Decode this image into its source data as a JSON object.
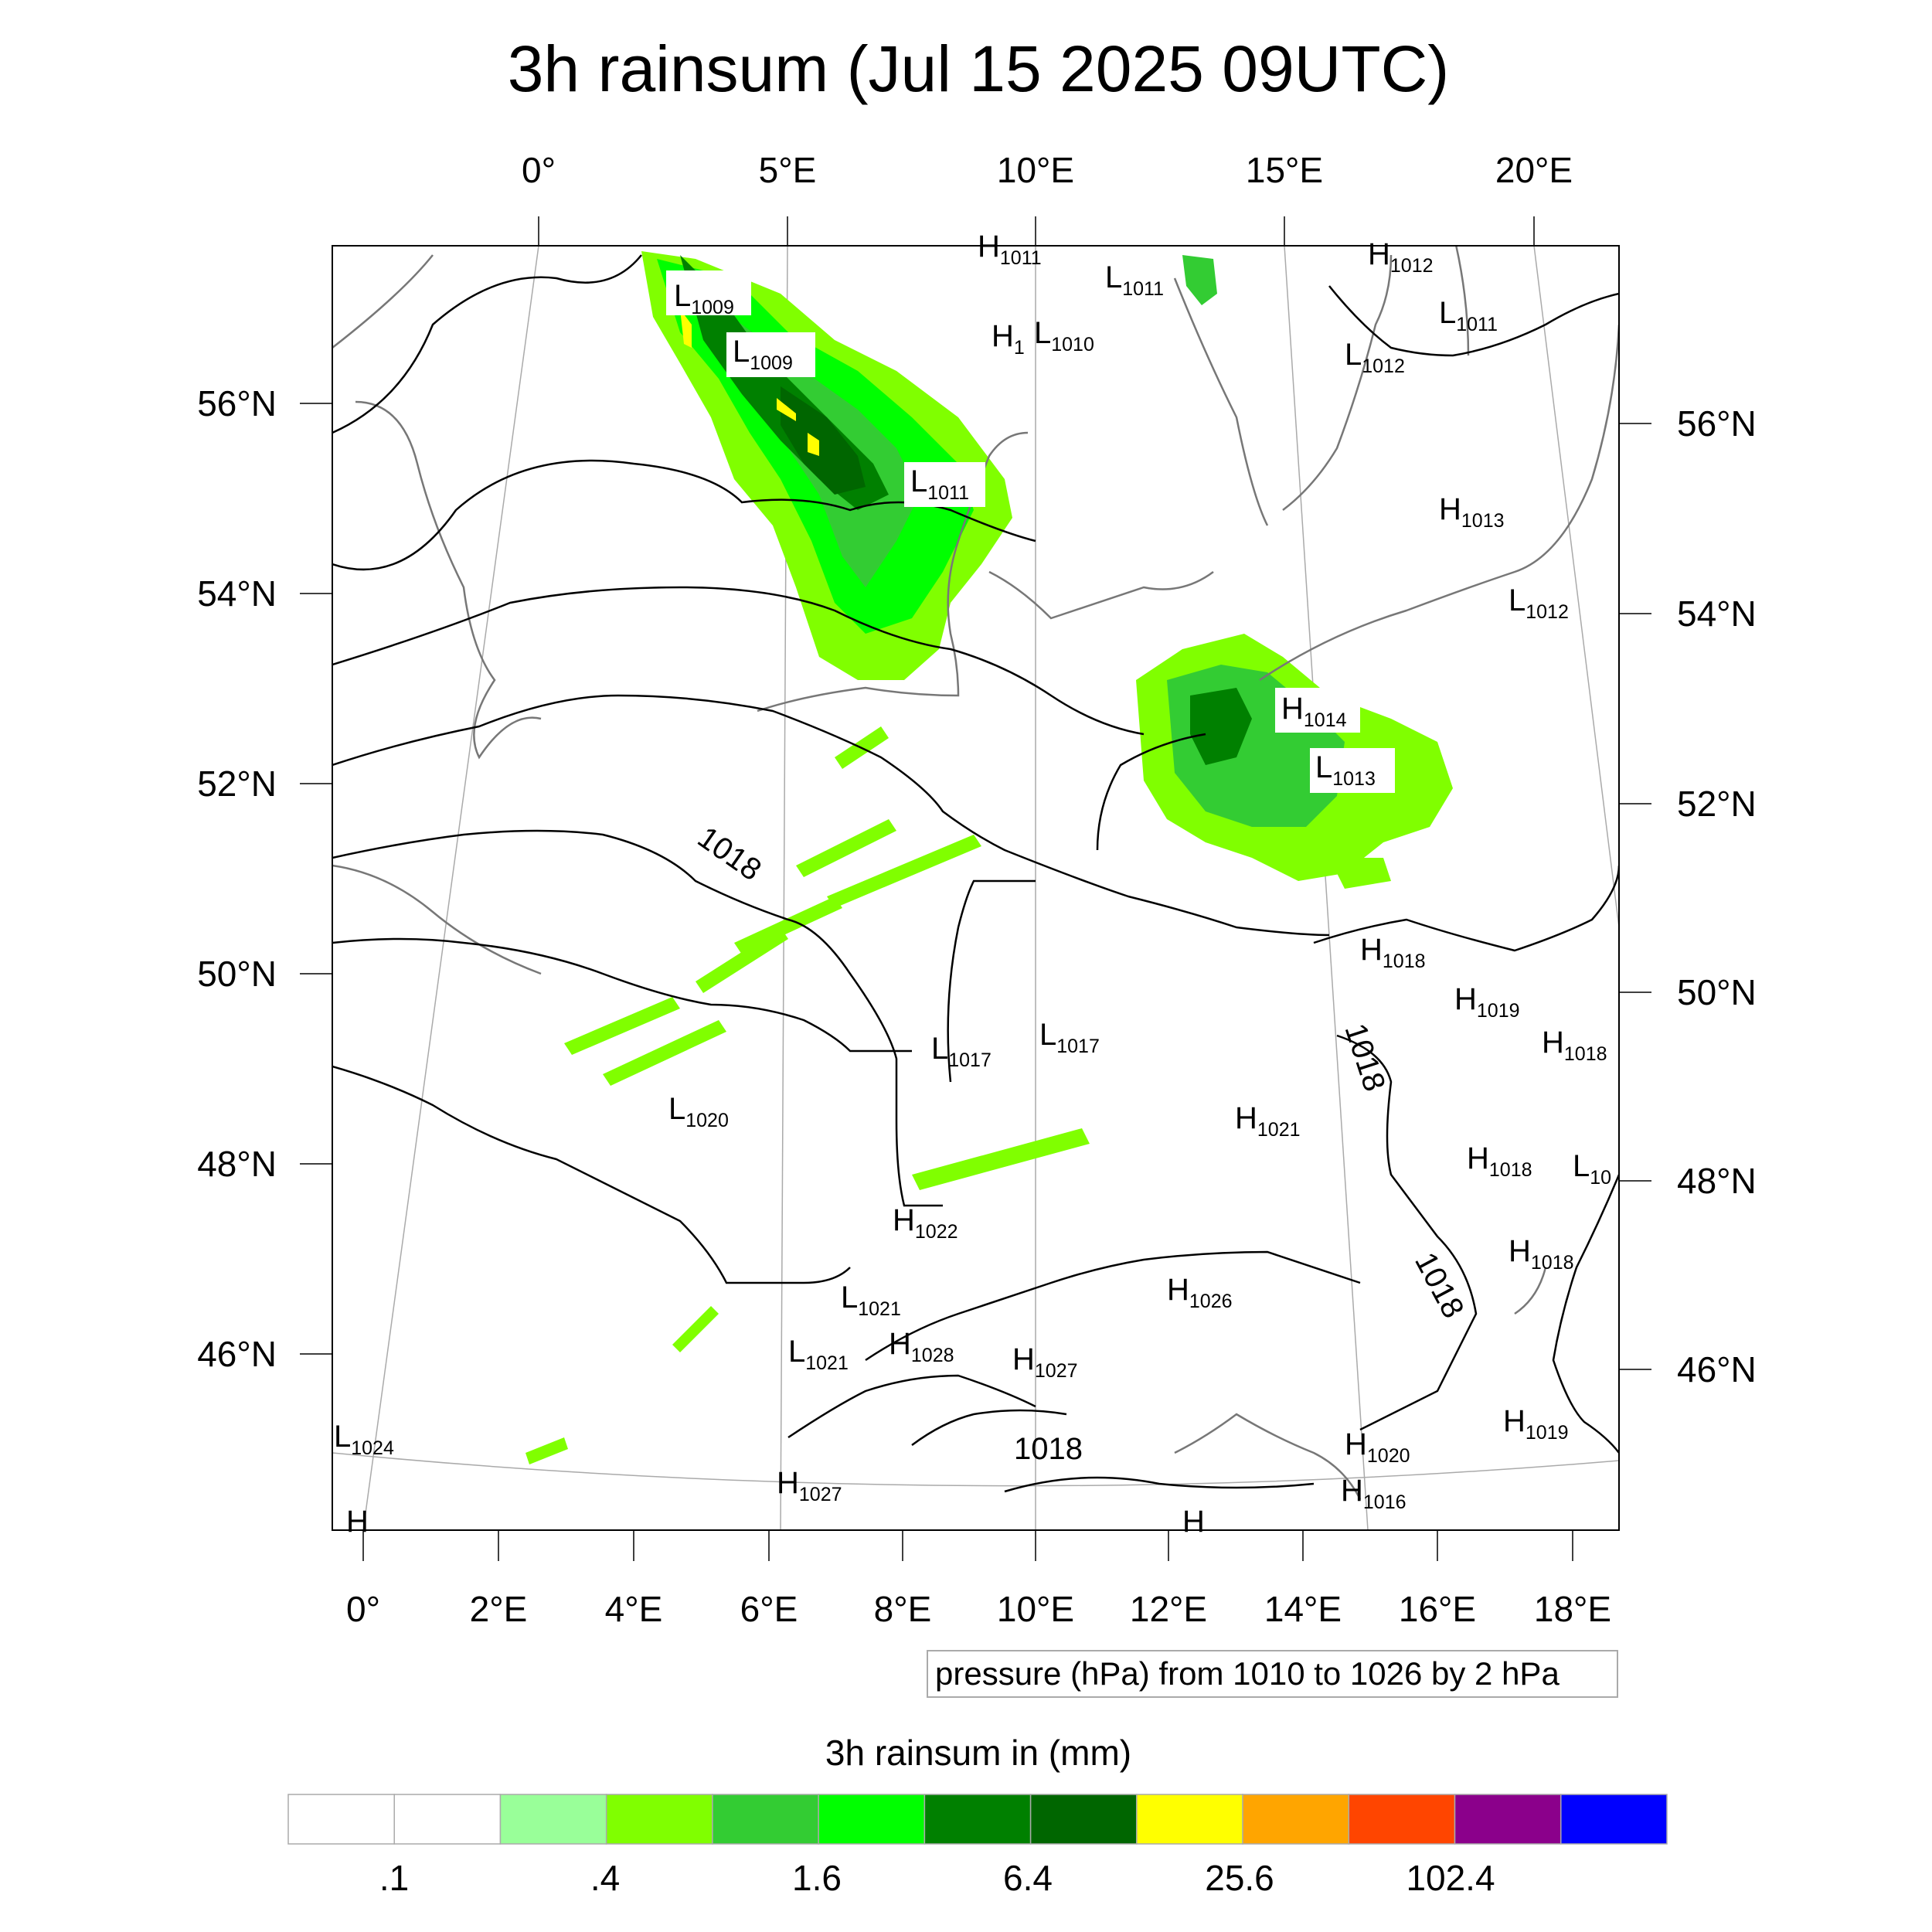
{
  "title": "3h rainsum (Jul 15 2025 09UTC)",
  "top_lon_labels": [
    "0°",
    "5°E",
    "10°E",
    "15°E",
    "20°E"
  ],
  "bottom_lon_labels": [
    "0°",
    "2°E",
    "4°E",
    "6°E",
    "8°E",
    "10°E",
    "12°E",
    "14°E",
    "16°E",
    "18°E"
  ],
  "left_lat_labels": [
    "56°N",
    "54°N",
    "52°N",
    "50°N",
    "48°N",
    "46°N"
  ],
  "right_lat_labels": [
    "56°N",
    "54°N",
    "52°N",
    "50°N",
    "48°N",
    "46°N"
  ],
  "pressure_note": "pressure (hPa) from 1010 to 1026 by 2 hPa",
  "colorbar": {
    "title": "3h rainsum in (mm)",
    "colors": [
      "#ffffff",
      "#ffffff",
      "#99ff99",
      "#80ff00",
      "#33cc33",
      "#00ff00",
      "#008000",
      "#006600",
      "#ffff00",
      "#ffa500",
      "#ff4500",
      "#8b008b",
      "#0000ff"
    ],
    "tick_labels": [
      ".1",
      ".4",
      "1.6",
      "6.4",
      "25.6",
      "102.4"
    ]
  },
  "pressure_centers": [
    {
      "type": "H",
      "value": "1011"
    },
    {
      "type": "L",
      "value": "1011"
    },
    {
      "type": "H",
      "value": "1012"
    },
    {
      "type": "L",
      "value": "1009"
    },
    {
      "type": "L",
      "value": "1009"
    },
    {
      "type": "H",
      "value": "1"
    },
    {
      "type": "L",
      "value": "1010"
    },
    {
      "type": "L",
      "value": "1011"
    },
    {
      "type": "L",
      "value": "1012"
    },
    {
      "type": "L",
      "value": "1011"
    },
    {
      "type": "H",
      "value": "1013"
    },
    {
      "type": "L",
      "value": "1012"
    },
    {
      "type": "H",
      "value": "1014"
    },
    {
      "type": "L",
      "value": "1013"
    },
    {
      "type": "H",
      "value": "1018"
    },
    {
      "type": "H",
      "value": "1019"
    },
    {
      "type": "H",
      "value": "1018"
    },
    {
      "type": "L",
      "value": "1017"
    },
    {
      "type": "L",
      "value": "1017"
    },
    {
      "type": "L",
      "value": "1020"
    },
    {
      "type": "H",
      "value": "1021"
    },
    {
      "type": "H",
      "value": "1018"
    },
    {
      "type": "L",
      "value": "10"
    },
    {
      "type": "H",
      "value": "1022"
    },
    {
      "type": "H",
      "value": "1018"
    },
    {
      "type": "H",
      "value": "1026"
    },
    {
      "type": "L",
      "value": "1021"
    },
    {
      "type": "H",
      "value": "1028"
    },
    {
      "type": "L",
      "value": "1021"
    },
    {
      "type": "H",
      "value": "1027"
    },
    {
      "type": "H",
      "value": "1019"
    },
    {
      "type": "H",
      "value": "1020"
    },
    {
      "type": "L",
      "value": "1024"
    },
    {
      "type": "H",
      "value": "1027"
    },
    {
      "type": "H",
      "value": "1016"
    },
    {
      "type": "H",
      "value": ""
    },
    {
      "type": "H",
      "value": ""
    }
  ],
  "isobar_labels": [
    "1018",
    "1018",
    "1018",
    "1018"
  ]
}
